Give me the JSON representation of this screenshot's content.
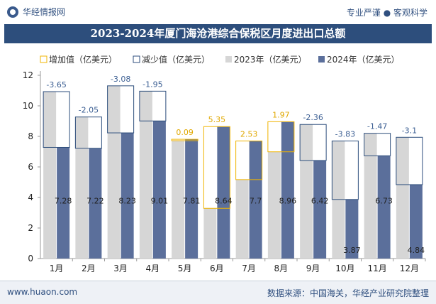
{
  "header": {
    "brand": "华经情报网",
    "tagline": "专业严谨 ● 客观科学"
  },
  "title": "2023-2024年厦门海沧港综合保税区月度进出口总额",
  "footer": {
    "site": "www.huaon.com",
    "source": "数据来源：中国海关，华经产业研究院整理"
  },
  "colors": {
    "increase": "#f0b400",
    "decrease": "#2d4e7c",
    "bar2023": "#d6d6d6",
    "bar2024": "#5b6f9b",
    "title_bg": "#2d4e7c"
  },
  "chart_data": {
    "type": "bar",
    "categories": [
      "1月",
      "2月",
      "3月",
      "4月",
      "5月",
      "6月",
      "7月",
      "8月",
      "9月",
      "10月",
      "11月",
      "12月"
    ],
    "series": [
      {
        "name": "2023年（亿美元）",
        "values": [
          10.93,
          9.27,
          11.31,
          10.96,
          7.72,
          3.29,
          5.17,
          6.99,
          8.78,
          7.7,
          8.2,
          7.94
        ]
      },
      {
        "name": "2024年（亿美元）",
        "values": [
          7.28,
          7.22,
          8.23,
          9.01,
          7.81,
          8.64,
          7.7,
          8.96,
          6.42,
          3.87,
          6.73,
          4.84
        ]
      }
    ],
    "change": {
      "increase_name": "增加值（亿美元）",
      "decrease_name": "减少值（亿美元）",
      "values": [
        -3.65,
        -2.05,
        -3.08,
        -1.95,
        0.09,
        5.35,
        2.53,
        1.97,
        -2.36,
        -3.83,
        -1.47,
        -3.1
      ]
    },
    "ylim": [
      0,
      12
    ],
    "yticks": [
      0,
      2,
      4,
      6,
      8,
      10,
      12
    ],
    "legend_position": "top"
  }
}
